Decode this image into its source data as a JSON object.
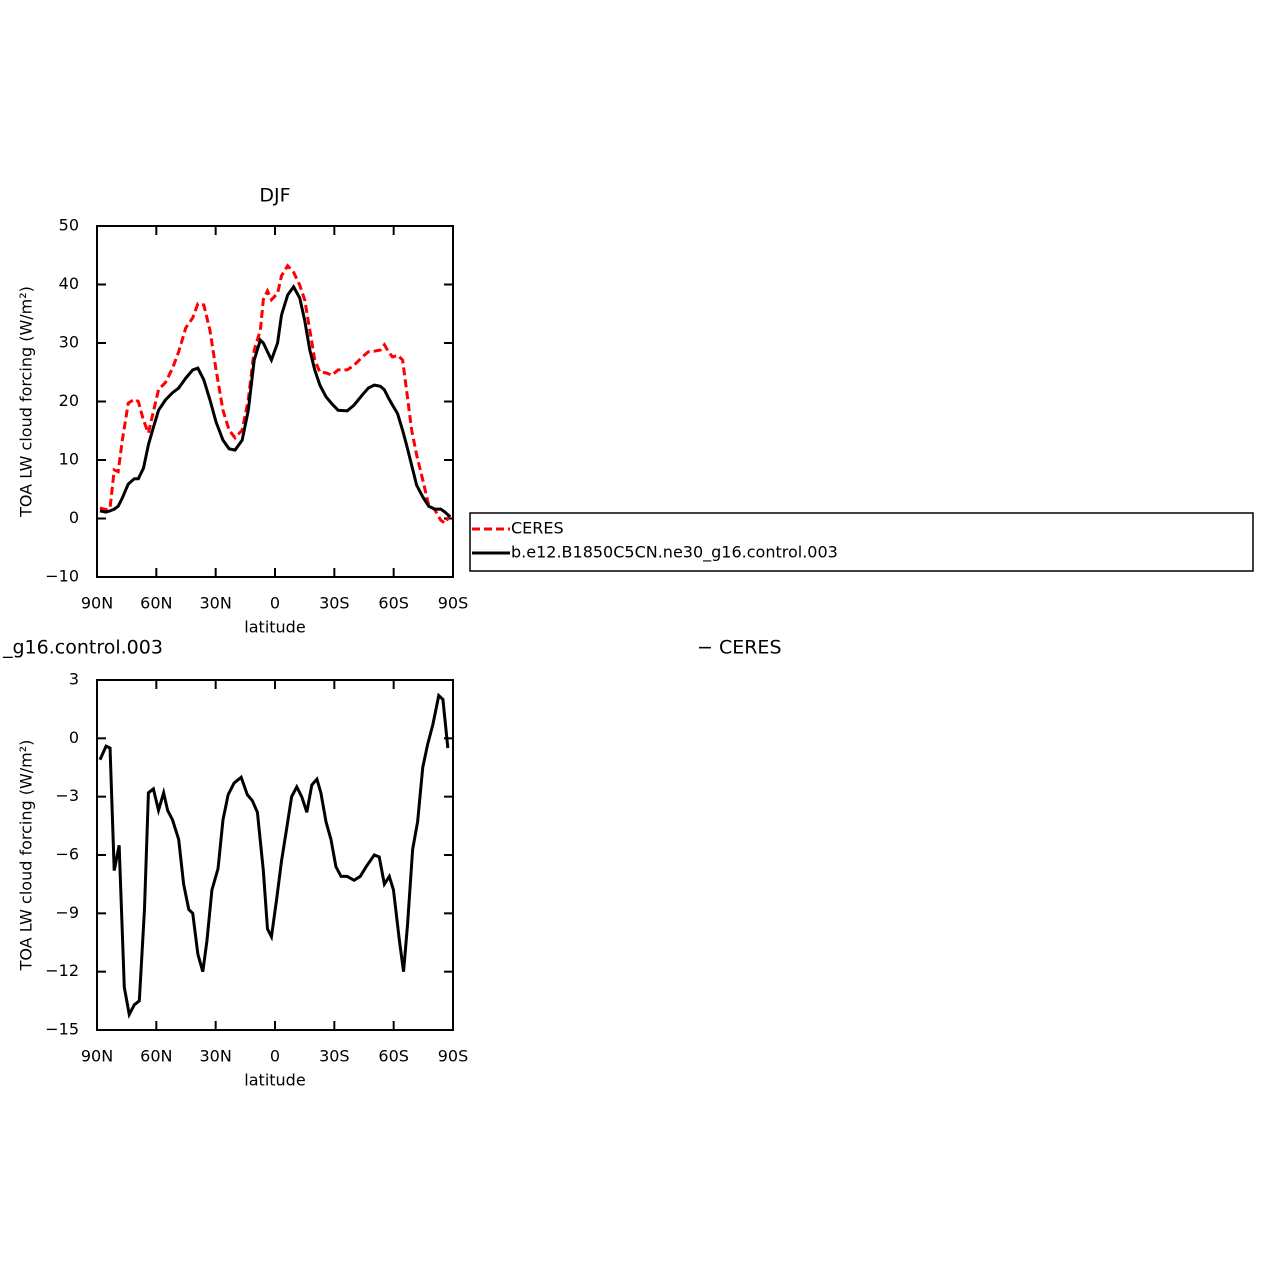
{
  "chart_data": [
    {
      "type": "line",
      "title": "DJF",
      "xlabel": "latitude",
      "ylabel": "TOA LW cloud forcing (W/m²)",
      "legend": "right",
      "xlim": [
        90,
        -90
      ],
      "ylim": [
        -10,
        50
      ],
      "xticks": [
        {
          "value": 90,
          "label": "90N"
        },
        {
          "value": 60,
          "label": "60N"
        },
        {
          "value": 30,
          "label": "30N"
        },
        0,
        {
          "value": -30,
          "label": "30S"
        },
        {
          "value": -60,
          "label": "60S"
        },
        {
          "value": -90,
          "label": "90S"
        }
      ],
      "yticks": [
        {
          "value": -10,
          "label": "−10"
        },
        0,
        10,
        20,
        30,
        40,
        50
      ],
      "x": [
        88.5,
        85.4,
        83.4,
        81.3,
        79.3,
        77.2,
        74.2,
        71.1,
        69.1,
        66.5,
        64.0,
        61.9,
        58.9,
        55.3,
        51.8,
        48.7,
        45.1,
        41.6,
        39.0,
        36.0,
        32.9,
        29.8,
        26.3,
        23.2,
        20.2,
        16.6,
        13.5,
        10.5,
        7.4,
        5.9,
        3.8,
        1.8,
        -1.3,
        -3.3,
        -6.4,
        -9.4,
        -12.5,
        -15.0,
        -17.6,
        -20.1,
        -22.7,
        -25.8,
        -28.8,
        -31.9,
        -36.5,
        -40.0,
        -44.1,
        -47.2,
        -50.2,
        -53.3,
        -55.3,
        -57.4,
        -59.4,
        -62.0,
        -64.5,
        -66.5,
        -69.1,
        -71.6,
        -74.7,
        -77.7,
        -80.8,
        -83.8,
        -85.9,
        -88.5
      ],
      "series": [
        {
          "name": "CERES",
          "color": "#ff0000",
          "dash": true,
          "values": [
            1.8,
            1.5,
            1.8,
            8.3,
            8.0,
            13.4,
            19.7,
            20.4,
            20.0,
            16.8,
            14.6,
            17.7,
            22.0,
            23.3,
            25.7,
            28.5,
            32.6,
            34.3,
            36.7,
            36.5,
            32.2,
            25.4,
            18.5,
            15.1,
            13.8,
            15.1,
            20.3,
            28.8,
            32.2,
            37.4,
            38.9,
            37.4,
            38.5,
            41.5,
            43.2,
            42.1,
            39.9,
            37.4,
            32.2,
            27.1,
            25.0,
            24.9,
            24.5,
            25.4,
            25.4,
            26.2,
            27.6,
            28.5,
            28.6,
            28.8,
            29.7,
            28.5,
            27.6,
            27.9,
            27.1,
            22.0,
            15.1,
            10.9,
            6.6,
            2.3,
            1.5,
            -0.3,
            -0.8,
            0.6
          ]
        },
        {
          "name": "b.e12.B1850C5CN.ne30_g16.control.003",
          "color": "#000000",
          "dash": false,
          "values": [
            1.3,
            1.1,
            1.3,
            1.6,
            2.1,
            3.5,
            5.9,
            6.8,
            6.8,
            8.6,
            12.6,
            15.1,
            18.5,
            20.3,
            21.5,
            22.3,
            24.0,
            25.4,
            25.7,
            23.7,
            20.3,
            16.5,
            13.4,
            11.9,
            11.7,
            13.4,
            18.5,
            27.1,
            30.5,
            30.0,
            28.5,
            27.1,
            30.0,
            34.8,
            38.2,
            39.6,
            37.7,
            33.9,
            28.8,
            25.4,
            22.8,
            20.8,
            19.6,
            18.5,
            18.4,
            19.4,
            21.1,
            22.3,
            22.8,
            22.6,
            22.0,
            20.6,
            19.4,
            17.9,
            15.1,
            12.6,
            9.1,
            5.7,
            3.7,
            2.1,
            1.6,
            1.6,
            1.1,
            0.3
          ]
        }
      ]
    },
    {
      "type": "line",
      "title_left": "_g16.control.003",
      "title_right": "− CERES",
      "xlabel": "latitude",
      "ylabel": "TOA LW cloud forcing (W/m²)",
      "xlim": [
        90,
        -90
      ],
      "ylim": [
        -15,
        3
      ],
      "xticks": [
        {
          "value": 90,
          "label": "90N"
        },
        {
          "value": 60,
          "label": "60N"
        },
        {
          "value": 30,
          "label": "30N"
        },
        0,
        {
          "value": -30,
          "label": "30S"
        },
        {
          "value": -60,
          "label": "60S"
        },
        {
          "value": -90,
          "label": "90S"
        }
      ],
      "yticks": [
        {
          "value": -15,
          "label": "−15"
        },
        {
          "value": -12,
          "label": "−12"
        },
        {
          "value": -9,
          "label": "−9"
        },
        {
          "value": -6,
          "label": "−6"
        },
        {
          "value": -3,
          "label": "−3"
        },
        0,
        3
      ],
      "x": [
        88.5,
        85.4,
        83.4,
        81.3,
        78.8,
        76.2,
        73.7,
        71.1,
        68.6,
        66.0,
        64.0,
        61.5,
        58.9,
        56.3,
        54.3,
        51.8,
        48.7,
        46.2,
        43.6,
        41.6,
        39.0,
        36.5,
        34.4,
        31.9,
        28.8,
        26.3,
        23.7,
        20.7,
        17.1,
        14.0,
        11.5,
        8.9,
        5.9,
        3.8,
        1.8,
        -0.8,
        -3.3,
        -5.8,
        -8.4,
        -11.0,
        -13.5,
        -16.1,
        -18.6,
        -21.2,
        -23.2,
        -25.8,
        -28.3,
        -30.8,
        -33.4,
        -36.5,
        -40.0,
        -43.1,
        -46.1,
        -50.2,
        -52.7,
        -55.3,
        -57.8,
        -59.9,
        -62.9,
        -65.0,
        -67.0,
        -69.6,
        -72.1,
        -74.7,
        -77.2,
        -79.8,
        -82.8,
        -84.9,
        -87.4
      ],
      "series": [
        {
          "color": "#000000",
          "dash": false,
          "values": [
            -1.1,
            -0.4,
            -0.5,
            -6.8,
            -5.5,
            -12.8,
            -14.2,
            -13.7,
            -13.5,
            -8.8,
            -2.8,
            -2.6,
            -3.7,
            -2.8,
            -3.7,
            -4.2,
            -5.2,
            -7.5,
            -8.8,
            -9.0,
            -11.1,
            -12.0,
            -10.4,
            -7.8,
            -6.7,
            -4.2,
            -2.9,
            -2.3,
            -2.0,
            -2.9,
            -3.2,
            -3.8,
            -6.8,
            -9.8,
            -10.2,
            -8.3,
            -6.3,
            -4.7,
            -3.0,
            -2.5,
            -3.0,
            -3.8,
            -2.4,
            -2.1,
            -2.8,
            -4.3,
            -5.2,
            -6.6,
            -7.1,
            -7.1,
            -7.3,
            -7.1,
            -6.6,
            -6.0,
            -6.1,
            -7.5,
            -7.1,
            -7.8,
            -10.4,
            -12.0,
            -9.6,
            -5.7,
            -4.3,
            -1.5,
            -0.3,
            0.7,
            2.2,
            2.0,
            -0.5
          ]
        }
      ]
    }
  ]
}
